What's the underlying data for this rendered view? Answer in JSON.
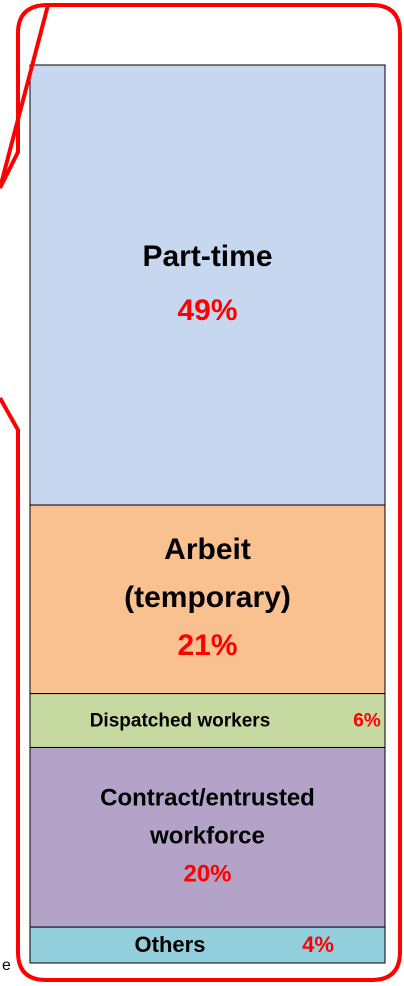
{
  "chart_data": {
    "type": "stacked-column",
    "categories": [
      [
        "Part-time"
      ],
      [
        "Arbeit",
        "(temporary)"
      ],
      [
        "Dispatched workers"
      ],
      [
        "Contract/entrusted",
        "workforce"
      ],
      [
        "Others"
      ]
    ],
    "values": [
      49,
      21,
      6,
      20,
      4
    ],
    "value_labels": [
      "49%",
      "21%",
      "6%",
      "20%",
      "4%"
    ],
    "colors": [
      "#c6d7ef",
      "#f9c090",
      "#c5d9a1",
      "#b3a3c9",
      "#93cedd"
    ],
    "label_color": "#000000",
    "value_color": "#ff0000",
    "frame_color": "#ff0000",
    "annotation": "e"
  }
}
